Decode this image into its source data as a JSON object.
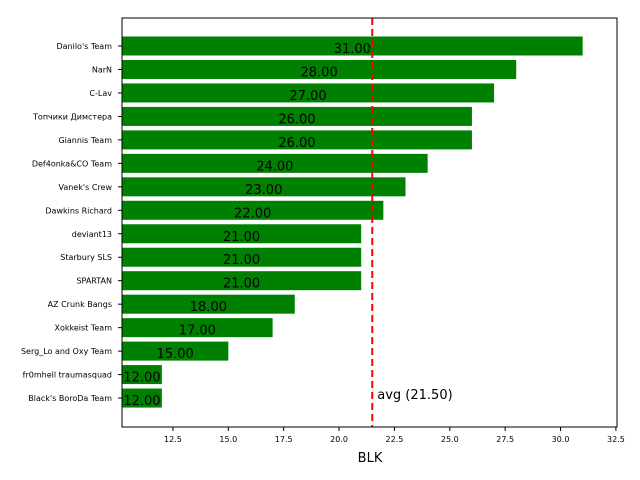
{
  "chart_data": {
    "type": "bar",
    "orientation": "horizontal",
    "title": "",
    "xlabel": "BLK",
    "ylabel": "",
    "xlim": [
      10.2,
      32.55
    ],
    "xticks": [
      12.5,
      15.0,
      17.5,
      20.0,
      22.5,
      25.0,
      27.5,
      30.0,
      32.5
    ],
    "xtick_labels": [
      "12.5",
      "15.0",
      "17.5",
      "20.0",
      "22.5",
      "25.0",
      "27.5",
      "30.0",
      "32.5"
    ],
    "grid": false,
    "bar_color": "#008000",
    "categories": [
      "Danilo's Team",
      "NarN",
      "C-Lav",
      "Топчики Димстера",
      "Giannis Team",
      "Def4onka&CO Team",
      "Vanek's Crew",
      "Dawkins Richard",
      "deviant13",
      "Starbury SLS",
      "SPARTAN",
      "AZ Crunk Bangs",
      "Xokkeist Team",
      "Serg_Lo and Oxy Team",
      "fr0mhell traumasquad",
      "Black's BoroDa Team"
    ],
    "values": [
      31,
      28,
      27,
      26,
      26,
      24,
      23,
      22,
      21,
      21,
      21,
      18,
      17,
      15,
      12,
      12
    ],
    "value_labels": [
      "31.00",
      "28.00",
      "27.00",
      "26.00",
      "26.00",
      "24.00",
      "23.00",
      "22.00",
      "21.00",
      "21.00",
      "21.00",
      "18.00",
      "17.00",
      "15.00",
      "12.00",
      "12.00"
    ],
    "reference_line": {
      "value": 21.5,
      "label": "avg (21.50)",
      "color": "#ff0000",
      "style": "dashed"
    }
  }
}
